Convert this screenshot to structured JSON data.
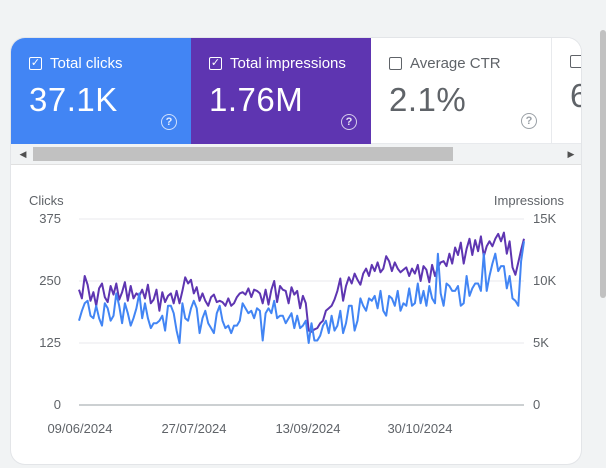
{
  "metrics": [
    {
      "label": "Total clicks",
      "value": "37.1K",
      "checked": true,
      "color": "#4285f4"
    },
    {
      "label": "Total impressions",
      "value": "1.76M",
      "checked": true,
      "color": "#5e35b1"
    },
    {
      "label": "Average CTR",
      "value": "2.1%",
      "checked": false
    },
    {
      "label": "",
      "value": "6",
      "checked": false
    }
  ],
  "chart_data": {
    "type": "line",
    "ylabel_left": "Clicks",
    "ylabel_right": "Impressions",
    "left_ticks": [
      "375",
      "250",
      "125",
      "0"
    ],
    "right_ticks": [
      "15K",
      "10K",
      "5K",
      "0"
    ],
    "x_ticks": [
      "09/06/2024",
      "27/07/2024",
      "13/09/2024",
      "30/10/2024"
    ],
    "ylim_left": [
      0,
      375
    ],
    "ylim_right": [
      0,
      15000
    ],
    "series": [
      {
        "name": "Total impressions",
        "axis": "right",
        "color": "#5e35b1",
        "values": [
          9300,
          8600,
          10400,
          9700,
          8400,
          9100,
          8000,
          9400,
          9800,
          8700,
          8300,
          9600,
          8900,
          9800,
          8500,
          9100,
          9900,
          8400,
          9600,
          8600,
          9000,
          8800,
          9300,
          8600,
          9700,
          8200,
          8500,
          9300,
          7600,
          9100,
          8300,
          8800,
          9000,
          8200,
          9200,
          8200,
          9200,
          10300,
          9800,
          10100,
          9000,
          9500,
          8400,
          9000,
          8400,
          8000,
          8700,
          8900,
          8300,
          8400,
          8300,
          8000,
          8600,
          8000,
          8200,
          8700,
          9000,
          9100,
          8900,
          9400,
          8700,
          9300,
          9200,
          9000,
          8200,
          9300,
          8100,
          9300,
          10000,
          8300,
          9600,
          9300,
          9200,
          8200,
          9500,
          8900,
          9200,
          7800,
          8800,
          8200,
          6000,
          5900,
          6100,
          6200,
          6600,
          6800,
          7600,
          7800,
          8000,
          8500,
          9200,
          10200,
          8400,
          9600,
          10300,
          9800,
          10600,
          10100,
          9700,
          10600,
          11000,
          10400,
          11300,
          10800,
          11500,
          10700,
          11000,
          12000,
          11600,
          10800,
          11500,
          11000,
          10700,
          10900,
          11100,
          10400,
          11000,
          10600,
          11300,
          10000,
          11200,
          10900,
          9900,
          11300,
          10400,
          11100,
          11500,
          11600,
          11200,
          12200,
          11400,
          12700,
          12100,
          13100,
          11400,
          12600,
          13400,
          12100,
          13300,
          12400,
          13600,
          12000,
          12800,
          13200,
          12800,
          13400,
          13800,
          13200,
          13900,
          12200,
          13200,
          11100,
          10500,
          11500,
          12500,
          13400
        ]
      },
      {
        "name": "Total clicks",
        "axis": "left",
        "color": "#4285f4",
        "values": [
          170,
          190,
          205,
          210,
          180,
          175,
          200,
          175,
          160,
          205,
          195,
          170,
          180,
          225,
          200,
          165,
          205,
          185,
          160,
          175,
          195,
          225,
          175,
          205,
          175,
          155,
          165,
          165,
          170,
          180,
          150,
          200,
          200,
          185,
          150,
          125,
          205,
          175,
          170,
          195,
          210,
          195,
          145,
          175,
          190,
          165,
          155,
          145,
          185,
          200,
          170,
          155,
          160,
          145,
          160,
          160,
          170,
          205,
          195,
          185,
          190,
          175,
          195,
          190,
          130,
          185,
          195,
          185,
          210,
          175,
          180,
          180,
          165,
          175,
          185,
          155,
          180,
          155,
          160,
          170,
          125,
          165,
          130,
          130,
          140,
          160,
          170,
          145,
          180,
          150,
          160,
          190,
          145,
          165,
          200,
          200,
          150,
          170,
          215,
          200,
          190,
          215,
          210,
          220,
          195,
          230,
          190,
          180,
          220,
          215,
          200,
          230,
          190,
          205,
          200,
          235,
          200,
          205,
          245,
          205,
          230,
          200,
          240,
          215,
          205,
          305,
          225,
          200,
          245,
          240,
          230,
          230,
          240,
          200,
          205,
          260,
          220,
          235,
          245,
          245,
          230,
          305,
          230,
          260,
          285,
          305,
          270,
          280,
          280,
          235,
          260,
          215,
          210,
          200,
          290,
          330
        ]
      }
    ]
  }
}
